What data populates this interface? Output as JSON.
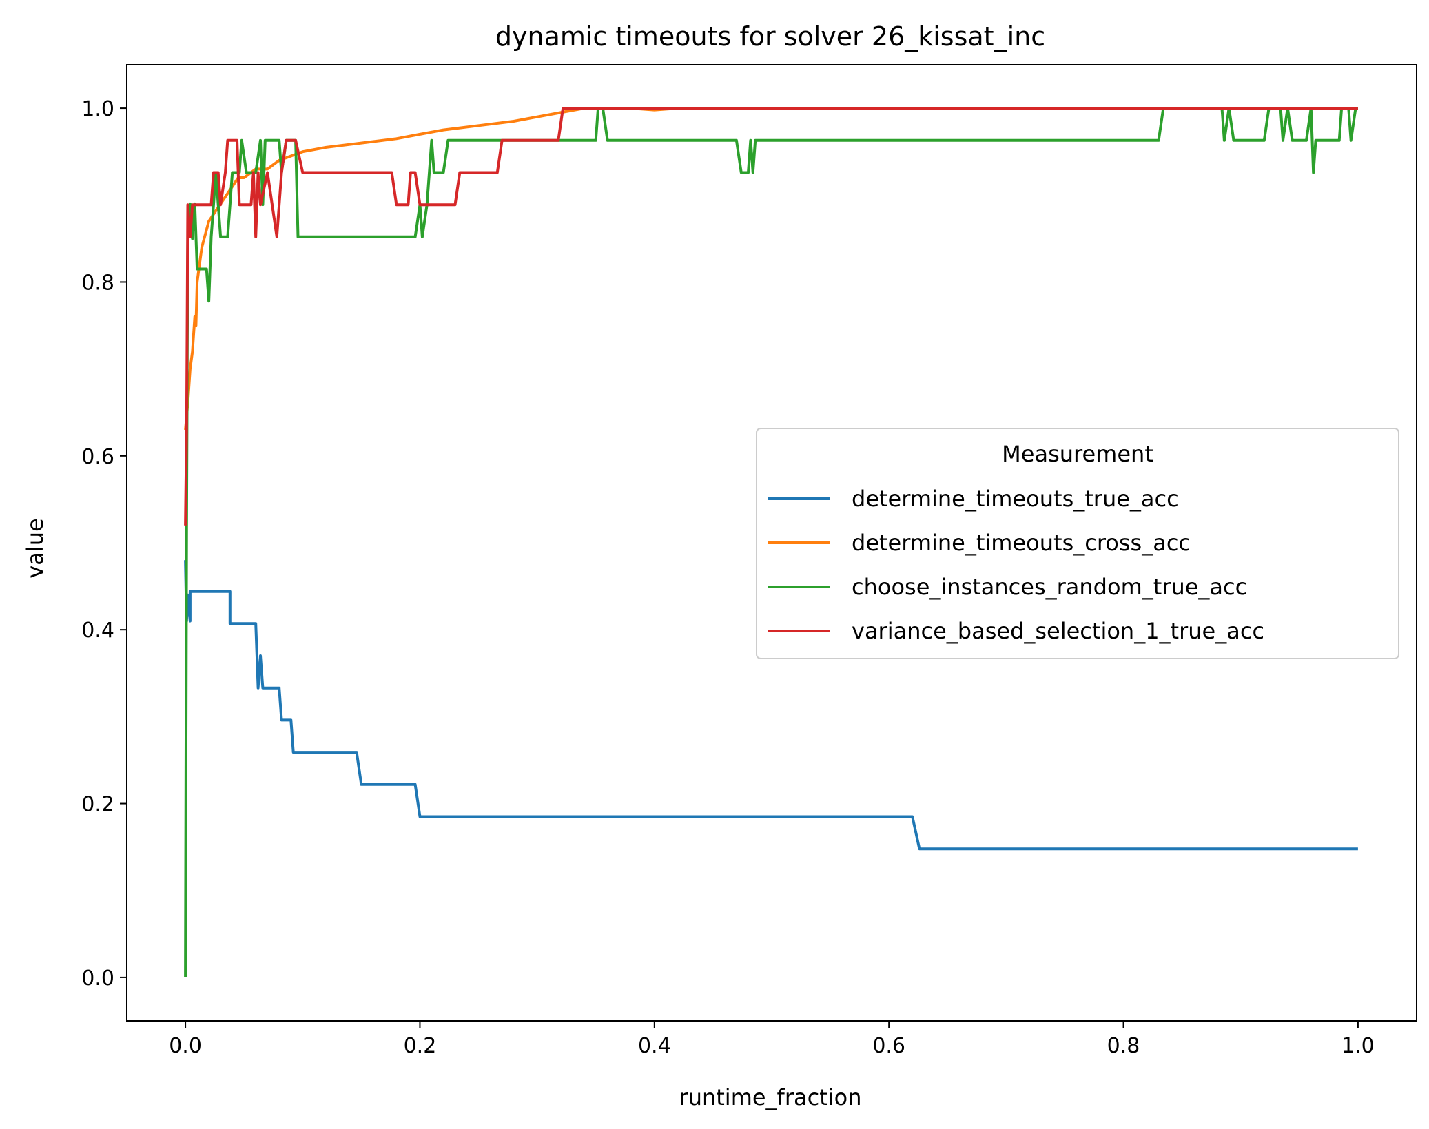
{
  "chart_data": {
    "type": "line",
    "title": "dynamic timeouts for solver 26_kissat_inc",
    "xlabel": "runtime_fraction",
    "ylabel": "value",
    "xlim": [
      -0.05,
      1.05
    ],
    "ylim": [
      -0.05,
      1.05
    ],
    "xticks": [
      "0.0",
      "0.2",
      "0.4",
      "0.6",
      "0.8",
      "1.0"
    ],
    "yticks": [
      "0.0",
      "0.2",
      "0.4",
      "0.6",
      "0.8",
      "1.0"
    ],
    "grid": false,
    "legend": {
      "title": "Measurement",
      "placement": "center-right"
    },
    "series": [
      {
        "name": "determine_timeouts_true_acc",
        "color": "#1f77b4",
        "points": [
          [
            0,
            0.48
          ],
          [
            0.001,
            0.41
          ],
          [
            0.002,
            0.44
          ],
          [
            0.004,
            0.41
          ],
          [
            0.004,
            0.444
          ],
          [
            0.038,
            0.444
          ],
          [
            0.038,
            0.407
          ],
          [
            0.06,
            0.407
          ],
          [
            0.062,
            0.333
          ],
          [
            0.064,
            0.37
          ],
          [
            0.066,
            0.333
          ],
          [
            0.08,
            0.333
          ],
          [
            0.082,
            0.296
          ],
          [
            0.09,
            0.296
          ],
          [
            0.092,
            0.259
          ],
          [
            0.146,
            0.259
          ],
          [
            0.15,
            0.222
          ],
          [
            0.196,
            0.222
          ],
          [
            0.2,
            0.185
          ],
          [
            0.62,
            0.185
          ],
          [
            0.626,
            0.148
          ],
          [
            1.0,
            0.148
          ]
        ]
      },
      {
        "name": "determine_timeouts_cross_acc",
        "color": "#ff7f0e",
        "points": [
          [
            0,
            0.63
          ],
          [
            0.002,
            0.66
          ],
          [
            0.004,
            0.7
          ],
          [
            0.006,
            0.72
          ],
          [
            0.008,
            0.76
          ],
          [
            0.009,
            0.75
          ],
          [
            0.01,
            0.8
          ],
          [
            0.012,
            0.82
          ],
          [
            0.014,
            0.84
          ],
          [
            0.016,
            0.85
          ],
          [
            0.018,
            0.86
          ],
          [
            0.02,
            0.87
          ],
          [
            0.025,
            0.88
          ],
          [
            0.03,
            0.89
          ],
          [
            0.035,
            0.9
          ],
          [
            0.04,
            0.91
          ],
          [
            0.045,
            0.92
          ],
          [
            0.05,
            0.92
          ],
          [
            0.06,
            0.93
          ],
          [
            0.07,
            0.93
          ],
          [
            0.08,
            0.94
          ],
          [
            0.09,
            0.945
          ],
          [
            0.1,
            0.95
          ],
          [
            0.12,
            0.955
          ],
          [
            0.15,
            0.96
          ],
          [
            0.18,
            0.965
          ],
          [
            0.2,
            0.97
          ],
          [
            0.22,
            0.975
          ],
          [
            0.25,
            0.98
          ],
          [
            0.28,
            0.985
          ],
          [
            0.3,
            0.99
          ],
          [
            0.32,
            0.995
          ],
          [
            0.34,
            1.0
          ],
          [
            0.36,
            1.0
          ],
          [
            0.38,
            1.0
          ],
          [
            0.4,
            0.998
          ],
          [
            0.42,
            1.0
          ],
          [
            1.0,
            1.0
          ]
        ]
      },
      {
        "name": "choose_instances_random_true_acc",
        "color": "#2ca02c",
        "points": [
          [
            0,
            0.0
          ],
          [
            0.001,
            0.52
          ],
          [
            0.002,
            0.85
          ],
          [
            0.004,
            0.89
          ],
          [
            0.006,
            0.85
          ],
          [
            0.008,
            0.89
          ],
          [
            0.01,
            0.815
          ],
          [
            0.018,
            0.815
          ],
          [
            0.02,
            0.778
          ],
          [
            0.022,
            0.852
          ],
          [
            0.026,
            0.926
          ],
          [
            0.03,
            0.852
          ],
          [
            0.036,
            0.852
          ],
          [
            0.04,
            0.926
          ],
          [
            0.046,
            0.926
          ],
          [
            0.048,
            0.963
          ],
          [
            0.052,
            0.926
          ],
          [
            0.06,
            0.926
          ],
          [
            0.064,
            0.963
          ],
          [
            0.066,
            0.889
          ],
          [
            0.068,
            0.963
          ],
          [
            0.08,
            0.963
          ],
          [
            0.082,
            0.926
          ],
          [
            0.086,
            0.963
          ],
          [
            0.094,
            0.963
          ],
          [
            0.096,
            0.852
          ],
          [
            0.196,
            0.852
          ],
          [
            0.2,
            0.889
          ],
          [
            0.202,
            0.852
          ],
          [
            0.206,
            0.889
          ],
          [
            0.208,
            0.926
          ],
          [
            0.21,
            0.963
          ],
          [
            0.212,
            0.926
          ],
          [
            0.22,
            0.926
          ],
          [
            0.224,
            0.963
          ],
          [
            0.35,
            0.963
          ],
          [
            0.352,
            1.0
          ],
          [
            0.356,
            1.0
          ],
          [
            0.36,
            0.963
          ],
          [
            0.47,
            0.963
          ],
          [
            0.474,
            0.926
          ],
          [
            0.48,
            0.926
          ],
          [
            0.482,
            0.963
          ],
          [
            0.484,
            0.926
          ],
          [
            0.486,
            0.963
          ],
          [
            0.83,
            0.963
          ],
          [
            0.834,
            1.0
          ],
          [
            0.884,
            1.0
          ],
          [
            0.886,
            0.963
          ],
          [
            0.89,
            1.0
          ],
          [
            0.894,
            0.963
          ],
          [
            0.92,
            0.963
          ],
          [
            0.924,
            1.0
          ],
          [
            0.934,
            1.0
          ],
          [
            0.936,
            0.963
          ],
          [
            0.94,
            1.0
          ],
          [
            0.944,
            0.963
          ],
          [
            0.956,
            0.963
          ],
          [
            0.96,
            1.0
          ],
          [
            0.962,
            0.926
          ],
          [
            0.964,
            0.963
          ],
          [
            0.984,
            0.963
          ],
          [
            0.986,
            1.0
          ],
          [
            0.992,
            1.0
          ],
          [
            0.994,
            0.963
          ],
          [
            0.998,
            1.0
          ],
          [
            1.0,
            1.0
          ]
        ]
      },
      {
        "name": "variance_based_selection_1_true_acc",
        "color": "#d62728",
        "points": [
          [
            0,
            0.52
          ],
          [
            0.001,
            0.63
          ],
          [
            0.002,
            0.889
          ],
          [
            0.004,
            0.852
          ],
          [
            0.006,
            0.889
          ],
          [
            0.022,
            0.889
          ],
          [
            0.024,
            0.926
          ],
          [
            0.028,
            0.926
          ],
          [
            0.03,
            0.889
          ],
          [
            0.034,
            0.926
          ],
          [
            0.036,
            0.963
          ],
          [
            0.044,
            0.963
          ],
          [
            0.046,
            0.889
          ],
          [
            0.056,
            0.889
          ],
          [
            0.058,
            0.926
          ],
          [
            0.06,
            0.852
          ],
          [
            0.062,
            0.926
          ],
          [
            0.064,
            0.889
          ],
          [
            0.07,
            0.926
          ],
          [
            0.074,
            0.889
          ],
          [
            0.078,
            0.852
          ],
          [
            0.082,
            0.926
          ],
          [
            0.086,
            0.963
          ],
          [
            0.094,
            0.963
          ],
          [
            0.1,
            0.926
          ],
          [
            0.176,
            0.926
          ],
          [
            0.18,
            0.889
          ],
          [
            0.19,
            0.889
          ],
          [
            0.192,
            0.926
          ],
          [
            0.196,
            0.926
          ],
          [
            0.2,
            0.889
          ],
          [
            0.23,
            0.889
          ],
          [
            0.234,
            0.926
          ],
          [
            0.266,
            0.926
          ],
          [
            0.27,
            0.963
          ],
          [
            0.318,
            0.963
          ],
          [
            0.322,
            1.0
          ],
          [
            1.0,
            1.0
          ]
        ]
      }
    ]
  }
}
